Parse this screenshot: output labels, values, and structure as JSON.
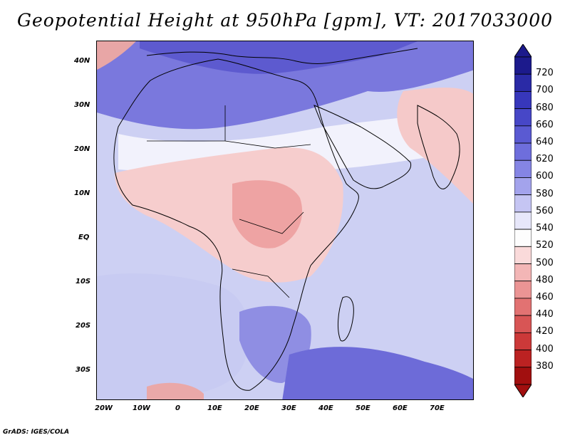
{
  "title": "Geopotential Height at 950hPa [gpm], VT: 2017033000",
  "credit": "GrADS: IGES/COLA",
  "lat_labels": [
    "40N",
    "30N",
    "20N",
    "10N",
    "EQ",
    "10S",
    "20S",
    "30S"
  ],
  "lon_labels": [
    "20W",
    "10W",
    "0",
    "10E",
    "20E",
    "30E",
    "40E",
    "50E",
    "60E",
    "70E"
  ],
  "colorbar": {
    "labels": [
      "720",
      "700",
      "680",
      "660",
      "640",
      "620",
      "600",
      "580",
      "560",
      "540",
      "520",
      "500",
      "480",
      "460",
      "440",
      "420",
      "400",
      "380"
    ],
    "colors": [
      "#1c1a8c",
      "#2a2aa6",
      "#3737bb",
      "#4747c7",
      "#5a5ad2",
      "#6e6edc",
      "#8585e4",
      "#a3a3ec",
      "#c5c5f3",
      "#e7e7fa",
      "#fdfdfd",
      "#fadada",
      "#f3b6b6",
      "#eb9494",
      "#e27272",
      "#d85555",
      "#cc3939",
      "#bb2222",
      "#a10f0f"
    ]
  }
}
